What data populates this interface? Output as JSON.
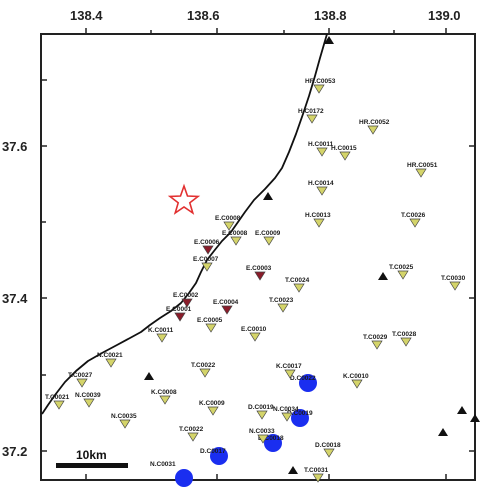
{
  "map": {
    "lon_ticks": [
      "138.4",
      "138.6",
      "138.8",
      "139.0"
    ],
    "lat_ticks": [
      "37.6",
      "37.4",
      "37.2"
    ],
    "scale_bar_label": "10km",
    "epicenter_symbol": "star-icon",
    "colors": {
      "coast": "#111111",
      "station_yellow": "#d4d46a",
      "station_red": "#8a1c2a",
      "station_outline": "#444444",
      "epicenter": "#e23030",
      "big_circle": "#1a2ef0",
      "volcano": "#111111"
    },
    "stations_yellow": [
      {
        "label": "HR.C0053"
      },
      {
        "label": "H.C0172"
      },
      {
        "label": "HR.C0052"
      },
      {
        "label": "H.C0011"
      },
      {
        "label": "H.C0015"
      },
      {
        "label": "HR.C0051"
      },
      {
        "label": "H.C0014"
      },
      {
        "label": "E.C0008"
      },
      {
        "label": "T.C0026"
      },
      {
        "label": "H.C0013"
      },
      {
        "label": "E.C0009"
      },
      {
        "label": "E.C0008"
      },
      {
        "label": "E.C0007"
      },
      {
        "label": "T.C0025"
      },
      {
        "label": "T.C0024"
      },
      {
        "label": "T.C0030"
      },
      {
        "label": "T.C0023"
      },
      {
        "label": "E.C0010"
      },
      {
        "label": "E.C0005"
      },
      {
        "label": "T.C0029"
      },
      {
        "label": "T.C0028"
      },
      {
        "label": "K.C0011"
      },
      {
        "label": "N.C0021"
      },
      {
        "label": "T.C0022"
      },
      {
        "label": "K.C0017"
      },
      {
        "label": "T.C0027"
      },
      {
        "label": "K.C0010"
      },
      {
        "label": "N.C0039"
      },
      {
        "label": "K.C0008"
      },
      {
        "label": "N.C0035"
      },
      {
        "label": "K.C0009"
      },
      {
        "label": "T.C0021"
      },
      {
        "label": "D.C0019"
      },
      {
        "label": "N.C0034"
      },
      {
        "label": "T.C0022"
      },
      {
        "label": "D.C0018"
      },
      {
        "label": "N.C0033"
      },
      {
        "label": "T.C0031"
      }
    ],
    "stations_red": [
      {
        "label": "E.C0006"
      },
      {
        "label": "E.C0003"
      },
      {
        "label": "E.C0002"
      },
      {
        "label": "E.C0004"
      },
      {
        "label": "E.C0001"
      }
    ],
    "circle_labels": [
      {
        "label": "D.C0022"
      },
      {
        "label": "D.C0019"
      },
      {
        "label": "D.C0018"
      },
      {
        "label": "D.C0017"
      },
      {
        "label": "N.C0031"
      }
    ]
  }
}
